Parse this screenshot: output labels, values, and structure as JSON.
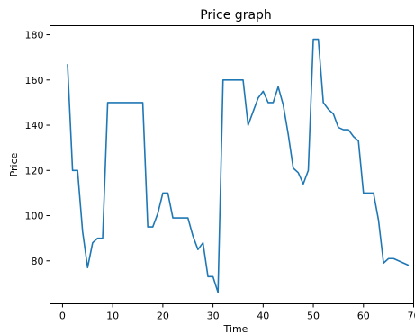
{
  "chart_data": {
    "type": "line",
    "title": "Price graph",
    "xlabel": "Time",
    "ylabel": "Price",
    "xlim": [
      -2.5,
      70
    ],
    "ylim": [
      61,
      184
    ],
    "x_ticks": [
      0,
      10,
      20,
      30,
      40,
      50,
      60,
      70
    ],
    "y_ticks": [
      80,
      100,
      120,
      140,
      160,
      180
    ],
    "tick_labels_x": [
      "0",
      "10",
      "20",
      "30",
      "40",
      "50",
      "60",
      "70"
    ],
    "tick_labels_y": [
      "80",
      "100",
      "120",
      "140",
      "160",
      "180"
    ],
    "grid": false,
    "legend": false,
    "line_color": "#1f77b4",
    "series": [
      {
        "x": [
          1,
          2,
          3,
          4,
          5,
          6,
          7,
          8,
          9,
          10,
          11,
          12,
          13,
          14,
          15,
          16,
          17,
          18,
          19,
          20,
          21,
          22,
          23,
          24,
          25,
          26,
          27,
          28,
          29,
          30,
          31,
          32,
          33,
          34,
          35,
          36,
          37,
          38,
          39,
          40,
          41,
          42,
          43,
          44,
          45,
          46,
          47,
          48,
          49,
          50,
          51,
          52,
          53,
          54,
          55,
          56,
          57,
          58,
          59,
          60,
          61,
          62,
          63,
          64,
          65,
          66,
          67,
          68,
          69
        ],
        "values": [
          167,
          120,
          120,
          93,
          77,
          88,
          90,
          90,
          150,
          150,
          150,
          150,
          150,
          150,
          150,
          150,
          95,
          95,
          101,
          110,
          110,
          99,
          99,
          99,
          99,
          91,
          85,
          88,
          73,
          73,
          66,
          160,
          160,
          160,
          160,
          160,
          140,
          146,
          152,
          155,
          150,
          150,
          157,
          149,
          136,
          121,
          119,
          114,
          120,
          178,
          178,
          150,
          147,
          145,
          139,
          138,
          138,
          135,
          133,
          110,
          110,
          110,
          98,
          79,
          81,
          81,
          80,
          79,
          78
        ]
      }
    ]
  }
}
